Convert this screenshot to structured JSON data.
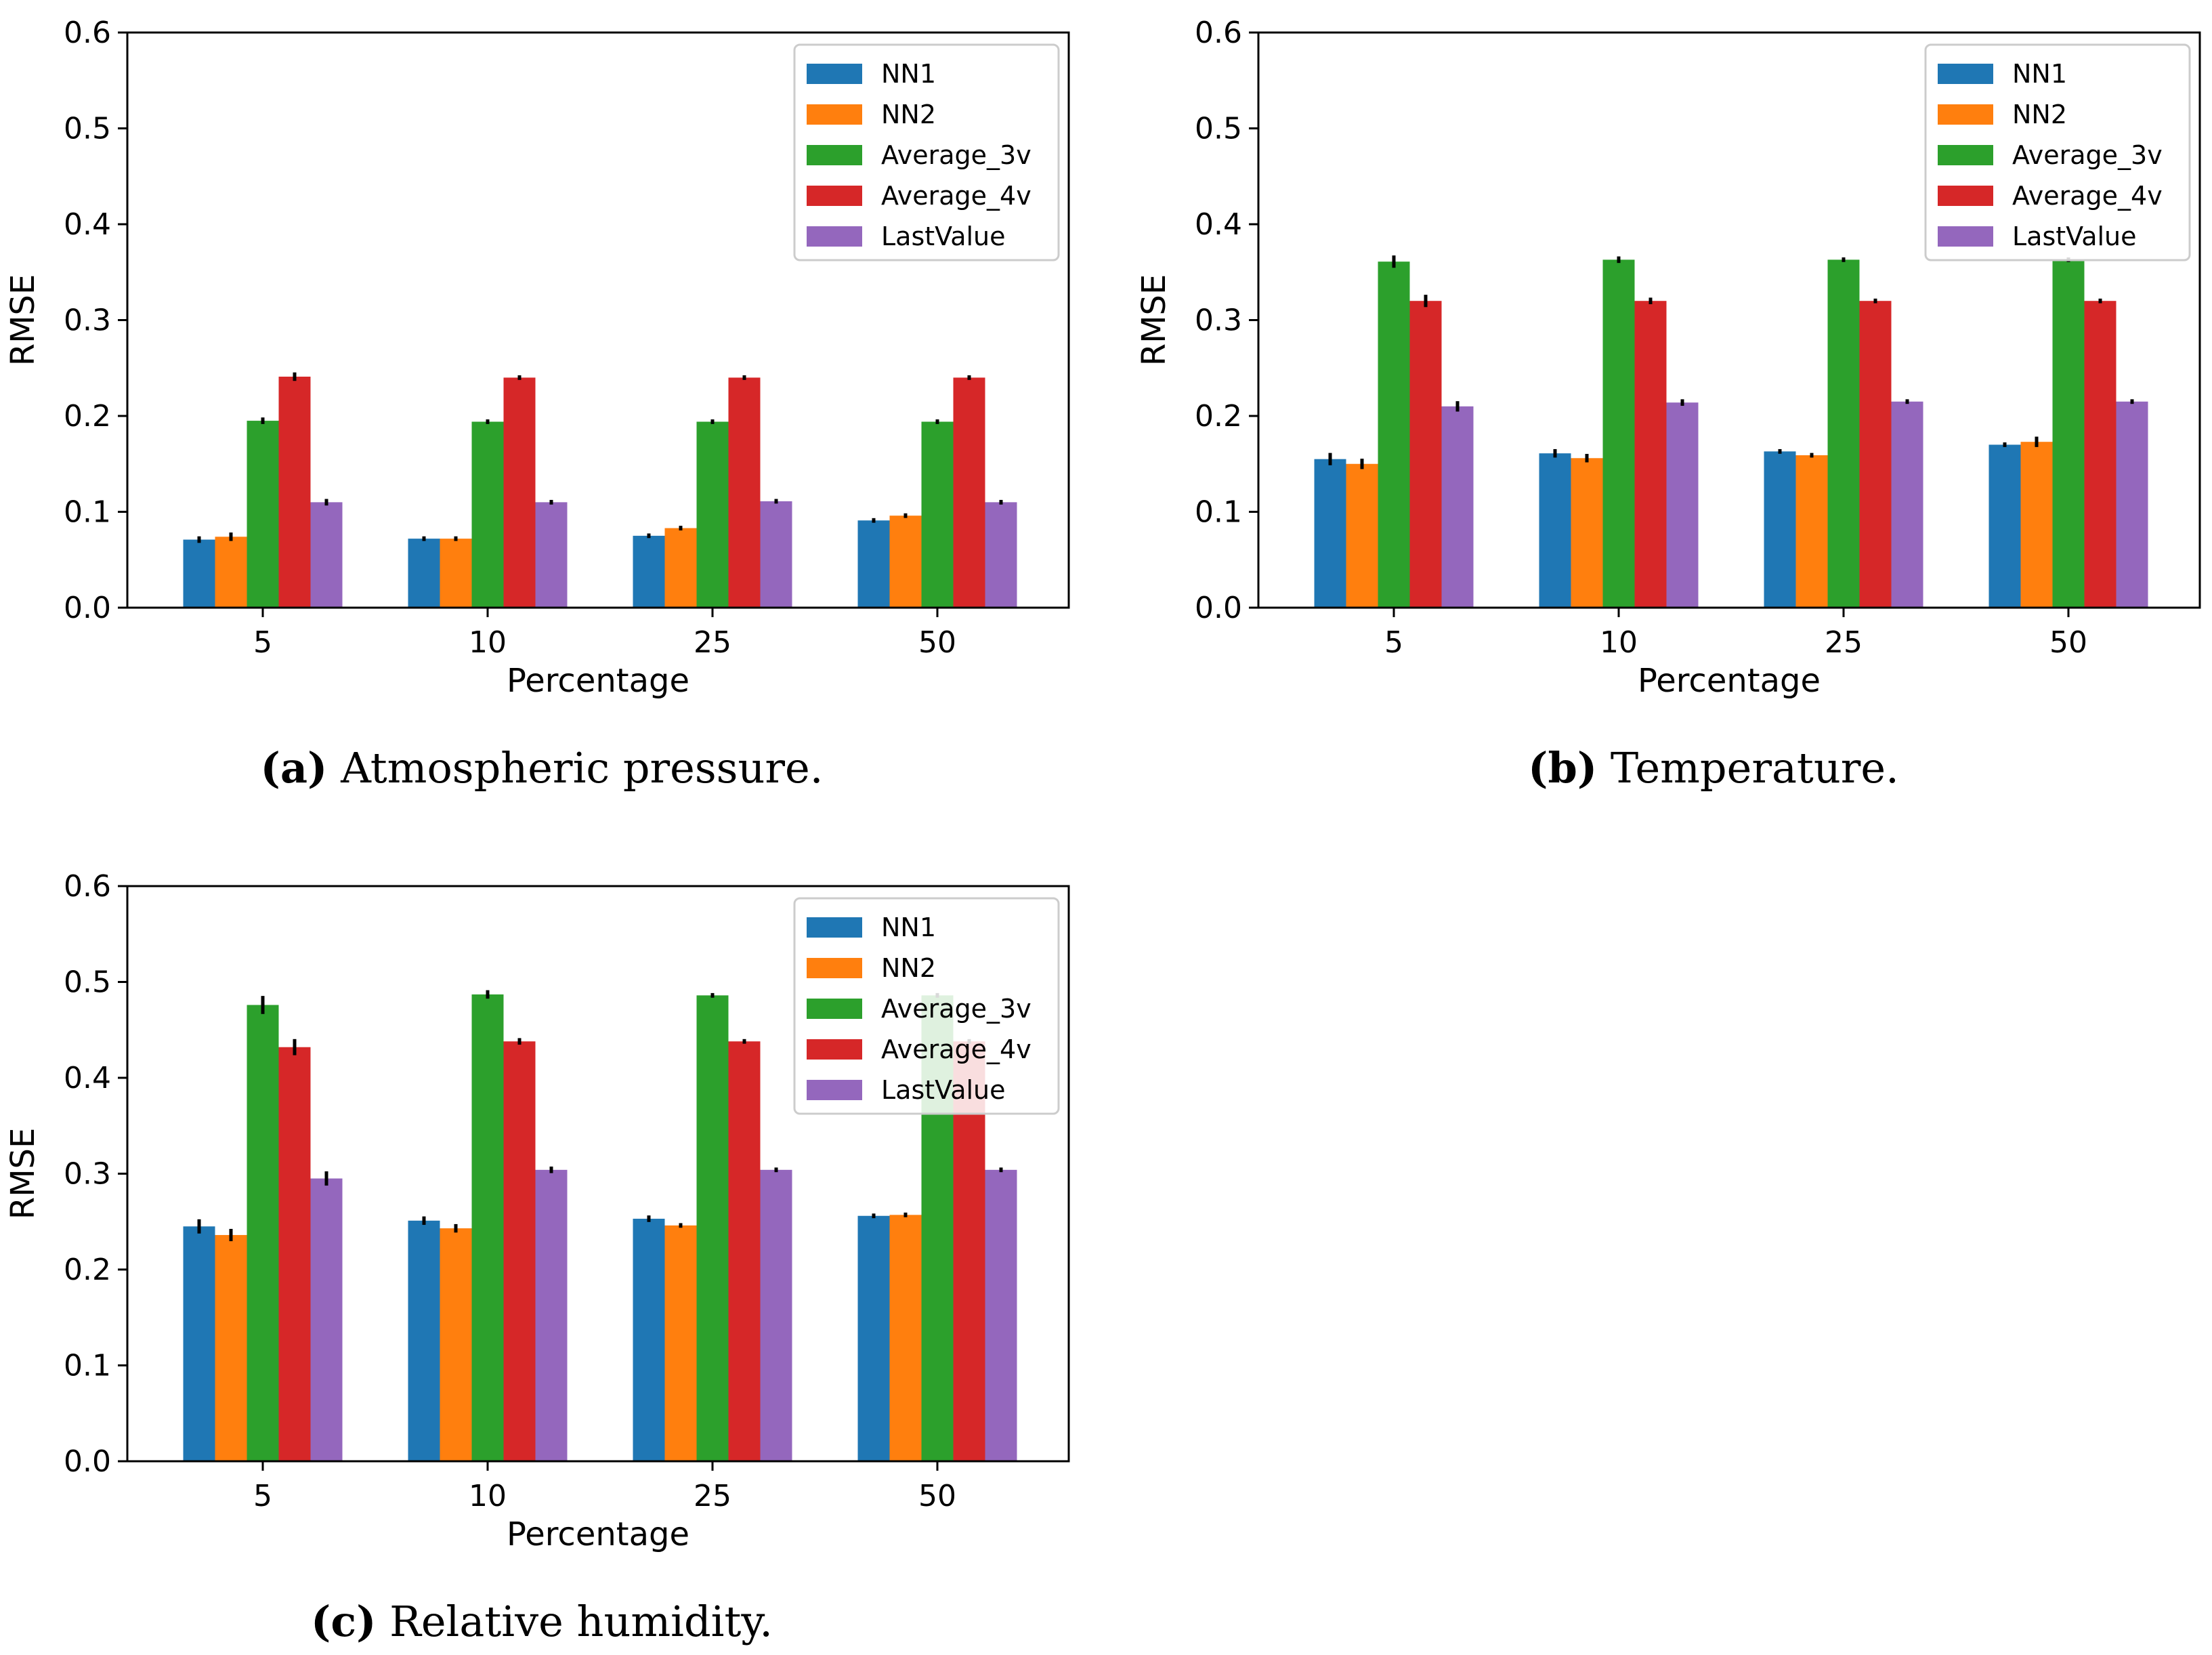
{
  "colors": {
    "NN1": "#1f77b4",
    "NN2": "#ff7f0e",
    "Average_3v": "#2ca02c",
    "Average_4v": "#d62728",
    "LastValue": "#9467bd"
  },
  "chart_data": [
    {
      "type": "bar",
      "caption_letter": "(a)",
      "caption_text": "Atmospheric pressure.",
      "xlabel": "Percentage",
      "ylabel": "RMSE",
      "ylim": [
        0,
        0.6
      ],
      "yticks": [
        "0.0",
        "0.1",
        "0.2",
        "0.3",
        "0.4",
        "0.5",
        "0.6"
      ],
      "categories": [
        "5",
        "10",
        "25",
        "50"
      ],
      "legend_position": "upper right",
      "series": [
        {
          "name": "NN1",
          "values": [
            0.071,
            0.072,
            0.075,
            0.091
          ],
          "errors": [
            0.002,
            0.001,
            0.001,
            0.001
          ]
        },
        {
          "name": "NN2",
          "values": [
            0.074,
            0.072,
            0.083,
            0.096
          ],
          "errors": [
            0.003,
            0.001,
            0.001,
            0.001
          ]
        },
        {
          "name": "Average_3v",
          "values": [
            0.195,
            0.194,
            0.194,
            0.194
          ],
          "errors": [
            0.002,
            0.001,
            0.001,
            0.001
          ]
        },
        {
          "name": "Average_4v",
          "values": [
            0.241,
            0.24,
            0.24,
            0.24
          ],
          "errors": [
            0.003,
            0.001,
            0.001,
            0.001
          ]
        },
        {
          "name": "LastValue",
          "values": [
            0.11,
            0.11,
            0.111,
            0.11
          ],
          "errors": [
            0.002,
            0.001,
            0.001,
            0.001
          ]
        }
      ]
    },
    {
      "type": "bar",
      "caption_letter": "(b)",
      "caption_text": "Temperature.",
      "xlabel": "Percentage",
      "ylabel": "RMSE",
      "ylim": [
        0,
        0.6
      ],
      "yticks": [
        "0.0",
        "0.1",
        "0.2",
        "0.3",
        "0.4",
        "0.5",
        "0.6"
      ],
      "categories": [
        "5",
        "10",
        "25",
        "50"
      ],
      "legend_position": "upper right",
      "series": [
        {
          "name": "NN1",
          "values": [
            0.155,
            0.161,
            0.163,
            0.17
          ],
          "errors": [
            0.005,
            0.003,
            0.001,
            0.001
          ]
        },
        {
          "name": "NN2",
          "values": [
            0.15,
            0.156,
            0.159,
            0.173
          ],
          "errors": [
            0.004,
            0.003,
            0.001,
            0.004
          ]
        },
        {
          "name": "Average_3v",
          "values": [
            0.361,
            0.363,
            0.363,
            0.363
          ],
          "errors": [
            0.005,
            0.002,
            0.001,
            0.001
          ]
        },
        {
          "name": "Average_4v",
          "values": [
            0.32,
            0.32,
            0.32,
            0.32
          ],
          "errors": [
            0.005,
            0.002,
            0.001,
            0.001
          ]
        },
        {
          "name": "LastValue",
          "values": [
            0.21,
            0.214,
            0.215,
            0.215
          ],
          "errors": [
            0.004,
            0.002,
            0.001,
            0.001
          ]
        }
      ]
    },
    {
      "type": "bar",
      "caption_letter": "(c)",
      "caption_text": "Relative humidity.",
      "xlabel": "Percentage",
      "ylabel": "RMSE",
      "ylim": [
        0,
        0.6
      ],
      "yticks": [
        "0.0",
        "0.1",
        "0.2",
        "0.3",
        "0.4",
        "0.5",
        "0.6"
      ],
      "categories": [
        "5",
        "10",
        "25",
        "50"
      ],
      "legend_position": "upper right",
      "series": [
        {
          "name": "NN1",
          "values": [
            0.245,
            0.251,
            0.253,
            0.256
          ],
          "errors": [
            0.006,
            0.003,
            0.002,
            0.001
          ]
        },
        {
          "name": "NN2",
          "values": [
            0.236,
            0.243,
            0.246,
            0.257
          ],
          "errors": [
            0.005,
            0.003,
            0.001,
            0.001
          ]
        },
        {
          "name": "Average_3v",
          "values": [
            0.476,
            0.487,
            0.486,
            0.486
          ],
          "errors": [
            0.008,
            0.003,
            0.001,
            0.001
          ]
        },
        {
          "name": "Average_4v",
          "values": [
            0.432,
            0.438,
            0.438,
            0.438
          ],
          "errors": [
            0.007,
            0.002,
            0.001,
            0.001
          ]
        },
        {
          "name": "LastValue",
          "values": [
            0.295,
            0.304,
            0.304,
            0.304
          ],
          "errors": [
            0.006,
            0.002,
            0.001,
            0.001
          ]
        }
      ]
    }
  ]
}
